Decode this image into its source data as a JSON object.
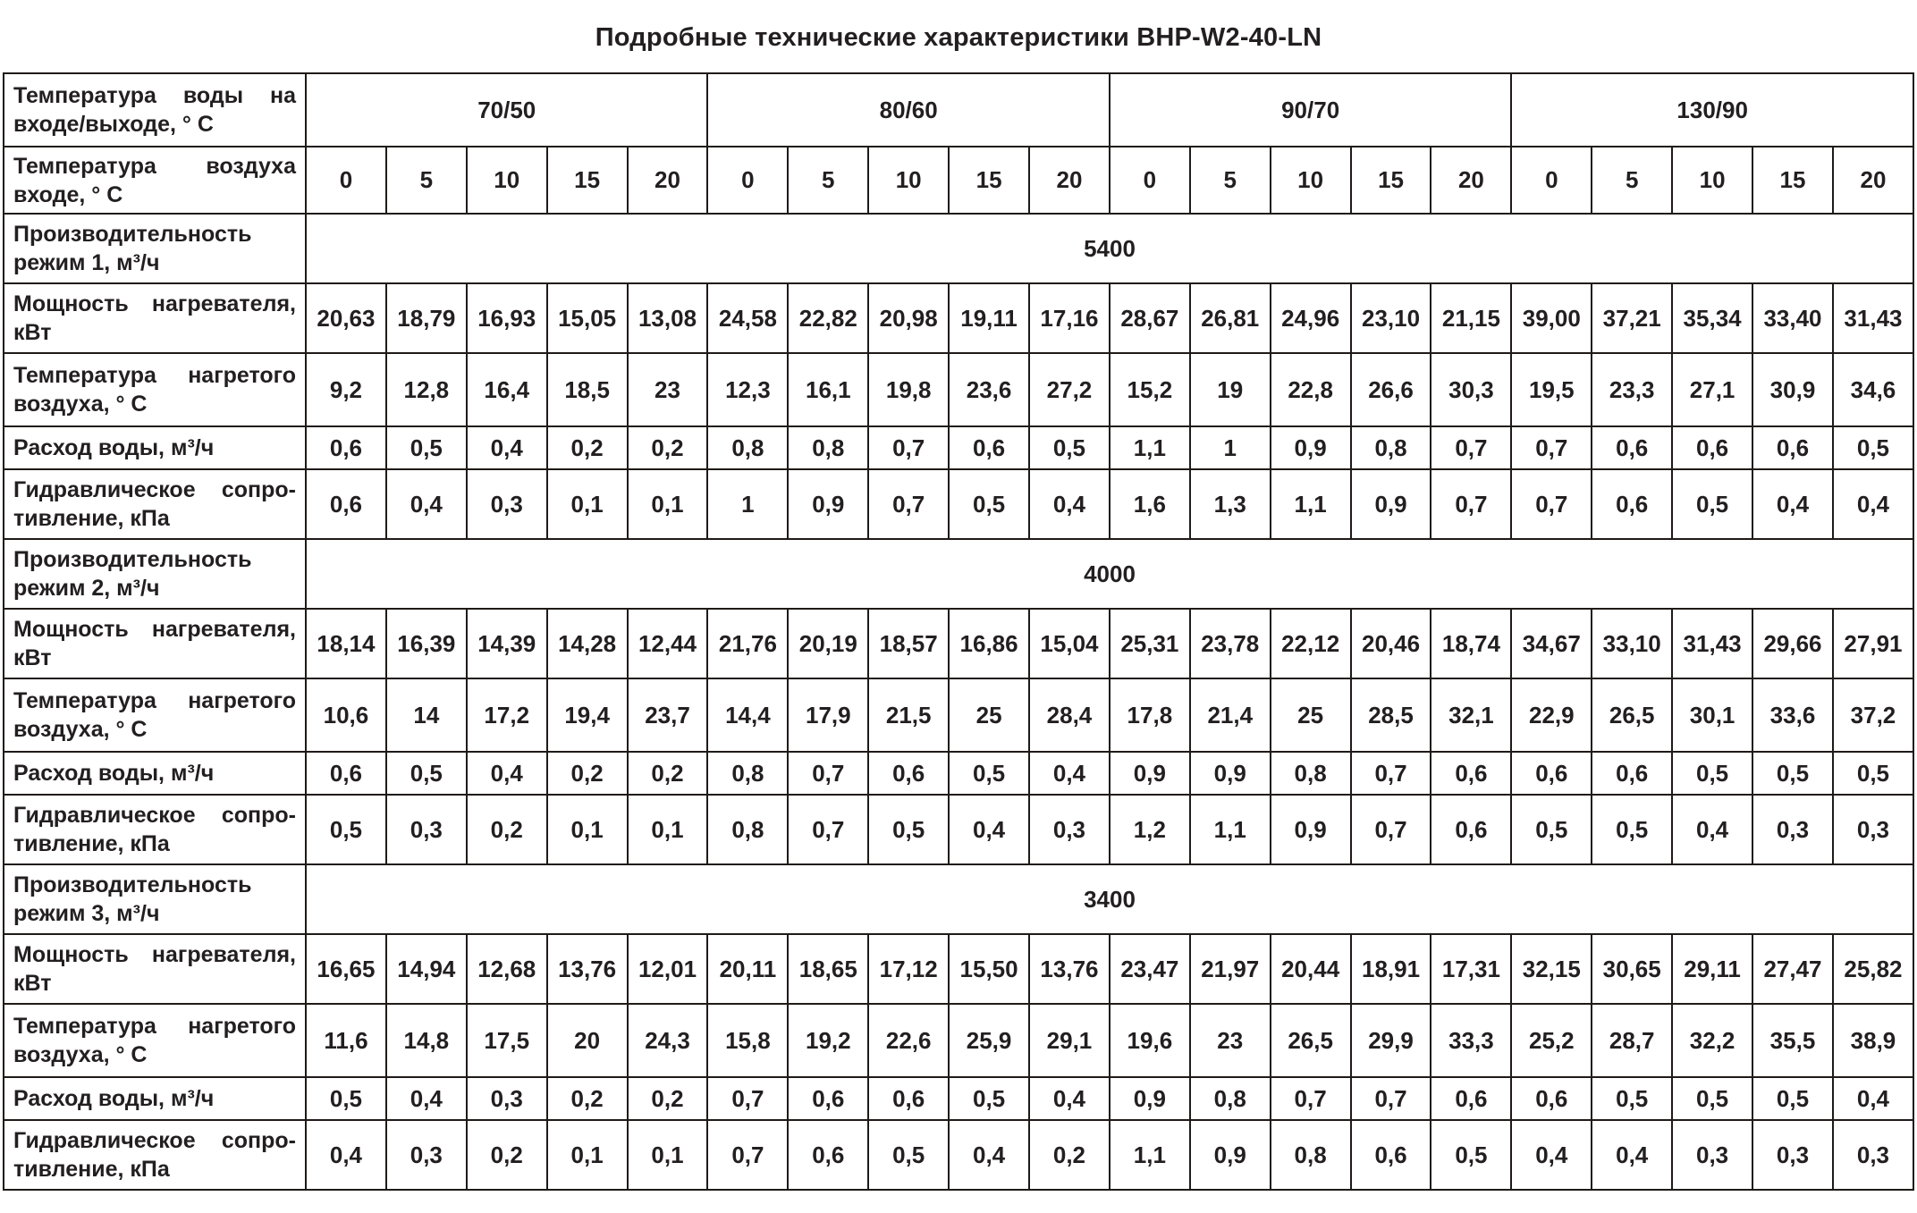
{
  "title": "Подробные технические характеристики BHP-W2-40-LN",
  "colors": {
    "text": "#231f20",
    "border": "#1f1a17",
    "background": "#ffffff"
  },
  "chart_data": {
    "type": "table",
    "title": "Подробные технические характеристики BHP-W2-40-LN",
    "column_groups": [
      "70/50",
      "80/60",
      "90/70",
      "130/90"
    ],
    "columns_per_group": [
      "0",
      "5",
      "10",
      "15",
      "20"
    ]
  },
  "table": {
    "water_temp_header": "Температура воды на входе/выходе, ° С",
    "air_temp_header": "Температура воздуха входе, ° С",
    "water_temp_groups": [
      "70/50",
      "80/60",
      "90/70",
      "130/90"
    ],
    "air_temps": [
      "0",
      "5",
      "10",
      "15",
      "20",
      "0",
      "5",
      "10",
      "15",
      "20",
      "0",
      "5",
      "10",
      "15",
      "20",
      "0",
      "5",
      "10",
      "15",
      "20"
    ],
    "sections": [
      {
        "capacity_label": "Производительность режим 1, м³/ч",
        "capacity_value": "5400",
        "rows": [
          {
            "label": "Мощность нагревателя, кВт",
            "values": [
              "20,63",
              "18,79",
              "16,93",
              "15,05",
              "13,08",
              "24,58",
              "22,82",
              "20,98",
              "19,11",
              "17,16",
              "28,67",
              "26,81",
              "24,96",
              "23,10",
              "21,15",
              "39,00",
              "37,21",
              "35,34",
              "33,40",
              "31,43"
            ]
          },
          {
            "label": "Температура нагретого воздуха, ° С",
            "values": [
              "9,2",
              "12,8",
              "16,4",
              "18,5",
              "23",
              "12,3",
              "16,1",
              "19,8",
              "23,6",
              "27,2",
              "15,2",
              "19",
              "22,8",
              "26,6",
              "30,3",
              "19,5",
              "23,3",
              "27,1",
              "30,9",
              "34,6"
            ]
          },
          {
            "label": "Расход воды, м³/ч",
            "values": [
              "0,6",
              "0,5",
              "0,4",
              "0,2",
              "0,2",
              "0,8",
              "0,8",
              "0,7",
              "0,6",
              "0,5",
              "1,1",
              "1",
              "0,9",
              "0,8",
              "0,7",
              "0,7",
              "0,6",
              "0,6",
              "0,6",
              "0,5"
            ]
          },
          {
            "label": "Гидравлическое сопро-тивление, кПа",
            "values": [
              "0,6",
              "0,4",
              "0,3",
              "0,1",
              "0,1",
              "1",
              "0,9",
              "0,7",
              "0,5",
              "0,4",
              "1,6",
              "1,3",
              "1,1",
              "0,9",
              "0,7",
              "0,7",
              "0,6",
              "0,5",
              "0,4",
              "0,4"
            ]
          }
        ]
      },
      {
        "capacity_label": "Производительность режим 2, м³/ч",
        "capacity_value": "4000",
        "rows": [
          {
            "label": "Мощность нагревателя, кВт",
            "values": [
              "18,14",
              "16,39",
              "14,39",
              "14,28",
              "12,44",
              "21,76",
              "20,19",
              "18,57",
              "16,86",
              "15,04",
              "25,31",
              "23,78",
              "22,12",
              "20,46",
              "18,74",
              "34,67",
              "33,10",
              "31,43",
              "29,66",
              "27,91"
            ]
          },
          {
            "label": "Температура нагретого воздуха, ° С",
            "values": [
              "10,6",
              "14",
              "17,2",
              "19,4",
              "23,7",
              "14,4",
              "17,9",
              "21,5",
              "25",
              "28,4",
              "17,8",
              "21,4",
              "25",
              "28,5",
              "32,1",
              "22,9",
              "26,5",
              "30,1",
              "33,6",
              "37,2"
            ]
          },
          {
            "label": "Расход воды, м³/ч",
            "values": [
              "0,6",
              "0,5",
              "0,4",
              "0,2",
              "0,2",
              "0,8",
              "0,7",
              "0,6",
              "0,5",
              "0,4",
              "0,9",
              "0,9",
              "0,8",
              "0,7",
              "0,6",
              "0,6",
              "0,6",
              "0,5",
              "0,5",
              "0,5"
            ]
          },
          {
            "label": "Гидравлическое сопро-тивление, кПа",
            "values": [
              "0,5",
              "0,3",
              "0,2",
              "0,1",
              "0,1",
              "0,8",
              "0,7",
              "0,5",
              "0,4",
              "0,3",
              "1,2",
              "1,1",
              "0,9",
              "0,7",
              "0,6",
              "0,5",
              "0,5",
              "0,4",
              "0,3",
              "0,3"
            ]
          }
        ]
      },
      {
        "capacity_label": "Производительность режим 3, м³/ч",
        "capacity_value": "3400",
        "rows": [
          {
            "label": "Мощность нагревателя, кВт",
            "values": [
              "16,65",
              "14,94",
              "12,68",
              "13,76",
              "12,01",
              "20,11",
              "18,65",
              "17,12",
              "15,50",
              "13,76",
              "23,47",
              "21,97",
              "20,44",
              "18,91",
              "17,31",
              "32,15",
              "30,65",
              "29,11",
              "27,47",
              "25,82"
            ]
          },
          {
            "label": "Температура нагретого воздуха, ° С",
            "values": [
              "11,6",
              "14,8",
              "17,5",
              "20",
              "24,3",
              "15,8",
              "19,2",
              "22,6",
              "25,9",
              "29,1",
              "19,6",
              "23",
              "26,5",
              "29,9",
              "33,3",
              "25,2",
              "28,7",
              "32,2",
              "35,5",
              "38,9"
            ]
          },
          {
            "label": "Расход воды, м³/ч",
            "values": [
              "0,5",
              "0,4",
              "0,3",
              "0,2",
              "0,2",
              "0,7",
              "0,6",
              "0,6",
              "0,5",
              "0,4",
              "0,9",
              "0,8",
              "0,7",
              "0,7",
              "0,6",
              "0,6",
              "0,5",
              "0,5",
              "0,5",
              "0,4"
            ]
          },
          {
            "label": "Гидравлическое сопро-тивление, кПа",
            "values": [
              "0,4",
              "0,3",
              "0,2",
              "0,1",
              "0,1",
              "0,7",
              "0,6",
              "0,5",
              "0,4",
              "0,2",
              "1,1",
              "0,9",
              "0,8",
              "0,6",
              "0,5",
              "0,4",
              "0,4",
              "0,3",
              "0,3",
              "0,3"
            ]
          }
        ]
      }
    ]
  }
}
